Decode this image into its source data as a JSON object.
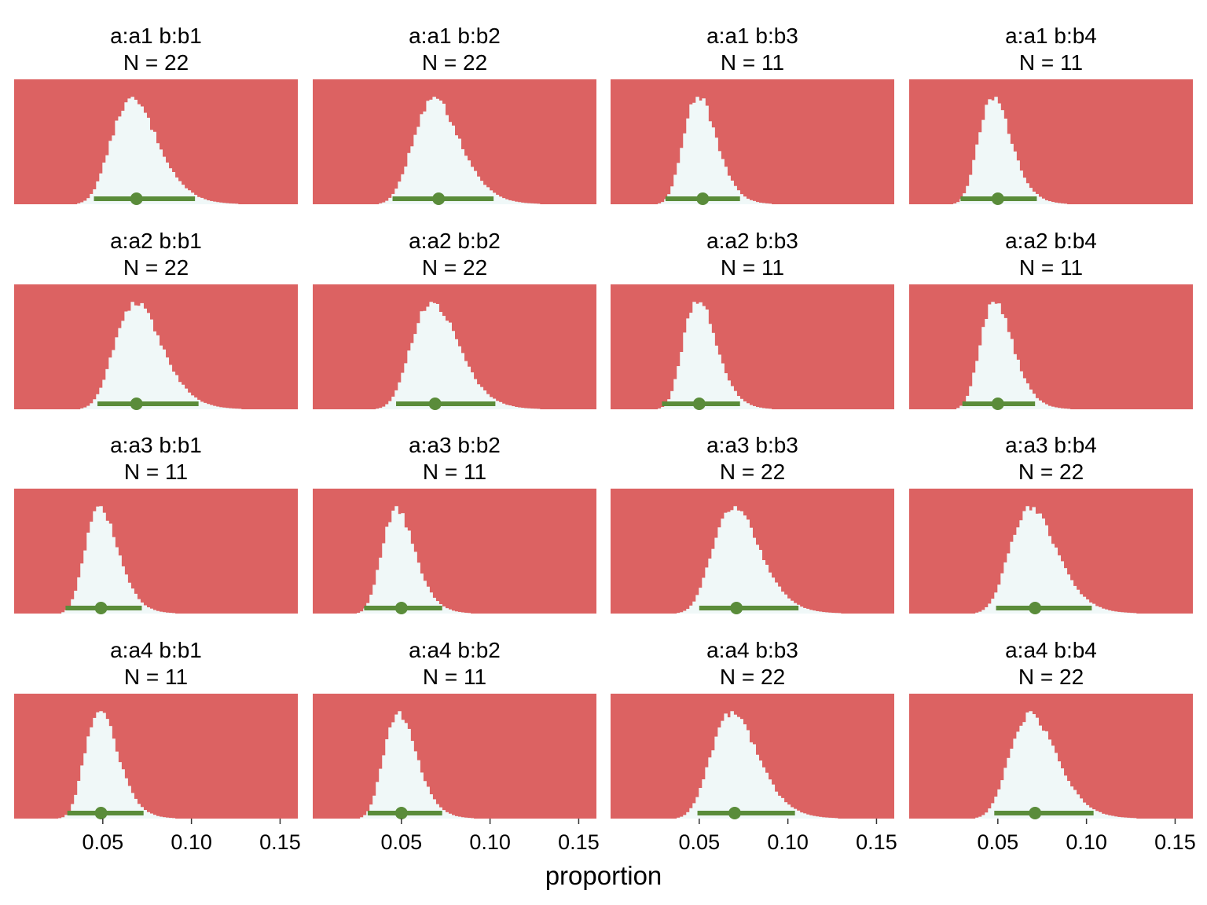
{
  "chart_data": {
    "type": "histogram-facet-grid",
    "xlabel": "proportion",
    "x_range": [
      0,
      0.16
    ],
    "x_ticks": [
      0.05,
      0.1,
      0.15
    ],
    "x_tick_labels": [
      "0.05",
      "0.10",
      "0.15"
    ],
    "colors": {
      "panel_background": "#dc6262",
      "histogram_fill": "#f0f8f8",
      "interval": "#5a8c3a",
      "point": "#5a8c3a"
    },
    "panels": [
      {
        "title": "a:a1 b:b1",
        "n_label": "N = 22",
        "n": 22,
        "center": 0.069,
        "sd": 0.0135,
        "point": 0.069,
        "interval": [
          0.045,
          0.102
        ],
        "tail_end": 0.16
      },
      {
        "title": "a:a1 b:b2",
        "n_label": "N = 22",
        "n": 22,
        "center": 0.071,
        "sd": 0.0135,
        "point": 0.071,
        "interval": [
          0.045,
          0.102
        ],
        "tail_end": 0.16
      },
      {
        "title": "a:a1 b:b3",
        "n_label": "N = 11",
        "n": 11,
        "center": 0.051,
        "sd": 0.0095,
        "point": 0.052,
        "interval": [
          0.031,
          0.073
        ],
        "tail_end": 0.105
      },
      {
        "title": "a:a1 b:b4",
        "n_label": "N = 11",
        "n": 11,
        "center": 0.049,
        "sd": 0.0095,
        "point": 0.05,
        "interval": [
          0.029,
          0.072
        ],
        "tail_end": 0.105
      },
      {
        "title": "a:a2 b:b1",
        "n_label": "N = 22",
        "n": 22,
        "center": 0.071,
        "sd": 0.0135,
        "point": 0.069,
        "interval": [
          0.047,
          0.104
        ],
        "tail_end": 0.155
      },
      {
        "title": "a:a2 b:b2",
        "n_label": "N = 22",
        "n": 22,
        "center": 0.07,
        "sd": 0.0135,
        "point": 0.069,
        "interval": [
          0.047,
          0.103
        ],
        "tail_end": 0.16
      },
      {
        "title": "a:a2 b:b3",
        "n_label": "N = 11",
        "n": 11,
        "center": 0.051,
        "sd": 0.0095,
        "point": 0.05,
        "interval": [
          0.029,
          0.073
        ],
        "tail_end": 0.1
      },
      {
        "title": "a:a2 b:b4",
        "n_label": "N = 11",
        "n": 11,
        "center": 0.05,
        "sd": 0.0095,
        "point": 0.05,
        "interval": [
          0.03,
          0.071
        ],
        "tail_end": 0.1
      },
      {
        "title": "a:a3 b:b1",
        "n_label": "N = 11",
        "n": 11,
        "center": 0.05,
        "sd": 0.0095,
        "point": 0.049,
        "interval": [
          0.029,
          0.072
        ],
        "tail_end": 0.105
      },
      {
        "title": "a:a3 b:b2",
        "n_label": "N = 11",
        "n": 11,
        "center": 0.049,
        "sd": 0.0095,
        "point": 0.05,
        "interval": [
          0.029,
          0.073
        ],
        "tail_end": 0.1
      },
      {
        "title": "a:a3 b:b3",
        "n_label": "N = 22",
        "n": 22,
        "center": 0.072,
        "sd": 0.0135,
        "point": 0.071,
        "interval": [
          0.05,
          0.106
        ],
        "tail_end": 0.16
      },
      {
        "title": "a:a3 b:b4",
        "n_label": "N = 22",
        "n": 22,
        "center": 0.071,
        "sd": 0.0135,
        "point": 0.071,
        "interval": [
          0.049,
          0.103
        ],
        "tail_end": 0.16
      },
      {
        "title": "a:a4 b:b1",
        "n_label": "N = 11",
        "n": 11,
        "center": 0.05,
        "sd": 0.0095,
        "point": 0.049,
        "interval": [
          0.03,
          0.073
        ],
        "tail_end": 0.105
      },
      {
        "title": "a:a4 b:b2",
        "n_label": "N = 11",
        "n": 11,
        "center": 0.05,
        "sd": 0.0095,
        "point": 0.05,
        "interval": [
          0.031,
          0.073
        ],
        "tail_end": 0.1
      },
      {
        "title": "a:a4 b:b3",
        "n_label": "N = 22",
        "n": 22,
        "center": 0.071,
        "sd": 0.0135,
        "point": 0.07,
        "interval": [
          0.049,
          0.104
        ],
        "tail_end": 0.155
      },
      {
        "title": "a:a4 b:b4",
        "n_label": "N = 22",
        "n": 22,
        "center": 0.071,
        "sd": 0.0135,
        "point": 0.071,
        "interval": [
          0.048,
          0.104
        ],
        "tail_end": 0.16
      }
    ]
  }
}
